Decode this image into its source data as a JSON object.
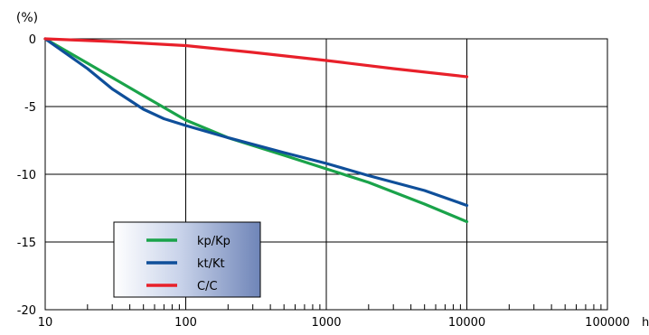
{
  "chart_data": {
    "type": "line",
    "title": "",
    "ylabel": "(%)",
    "xlabel": "",
    "x_unit": "h",
    "x_scale": "log",
    "xlim": [
      10,
      100000
    ],
    "ylim": [
      -20,
      0
    ],
    "grid": true,
    "x_ticks": [
      10,
      100,
      1000,
      10000,
      100000
    ],
    "x_tick_labels": [
      "10",
      "100",
      "1000",
      "10000",
      "100000"
    ],
    "y_ticks": [
      0,
      -5,
      -10,
      -15,
      -20
    ],
    "y_tick_labels": [
      "0",
      "-5",
      "-10",
      "-15",
      "-20"
    ],
    "legend_position": "bottom-left",
    "series": [
      {
        "name": "kp/Kp",
        "color": "#1aa34a",
        "points": [
          [
            10,
            0
          ],
          [
            20,
            -1.8
          ],
          [
            50,
            -4.2
          ],
          [
            100,
            -6.0
          ],
          [
            200,
            -7.3
          ],
          [
            500,
            -8.6
          ],
          [
            1000,
            -9.6
          ],
          [
            2000,
            -10.6
          ],
          [
            5000,
            -12.2
          ],
          [
            10000,
            -13.5
          ]
        ]
      },
      {
        "name": "kt/Kt",
        "color": "#0f4f9a",
        "points": [
          [
            10,
            0
          ],
          [
            20,
            -2.2
          ],
          [
            30,
            -3.7
          ],
          [
            50,
            -5.2
          ],
          [
            70,
            -5.9
          ],
          [
            100,
            -6.4
          ],
          [
            200,
            -7.3
          ],
          [
            500,
            -8.4
          ],
          [
            1000,
            -9.2
          ],
          [
            2000,
            -10.1
          ],
          [
            5000,
            -11.2
          ],
          [
            10000,
            -12.3
          ]
        ]
      },
      {
        "name": "C/C",
        "color": "#e8202a",
        "points": [
          [
            10,
            0
          ],
          [
            30,
            -0.2
          ],
          [
            100,
            -0.5
          ],
          [
            300,
            -1.0
          ],
          [
            1000,
            -1.6
          ],
          [
            3000,
            -2.2
          ],
          [
            10000,
            -2.8
          ]
        ]
      }
    ]
  }
}
